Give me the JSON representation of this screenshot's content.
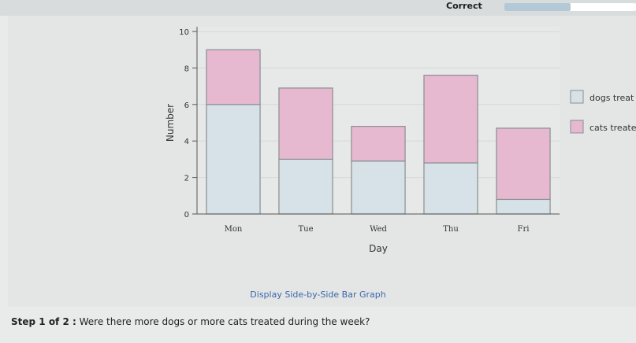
{
  "header": {
    "status": "Correct",
    "progress": 0.5
  },
  "chart_data": {
    "type": "bar",
    "stacked": true,
    "categories": [
      "Mon",
      "Tue",
      "Wed",
      "Thu",
      "Fri"
    ],
    "series": [
      {
        "name": "dogs treat",
        "values": [
          6,
          3,
          2.9,
          2.8,
          0.8
        ],
        "color": "#d6e2e7"
      },
      {
        "name": "cats treate",
        "values": [
          3,
          3.9,
          1.9,
          4.8,
          3.9
        ],
        "color": "#e6b9d1"
      }
    ],
    "xlabel": "Day",
    "ylabel": "Number",
    "ylim": [
      0,
      10
    ],
    "yticks": [
      "0",
      "2",
      "4",
      "6",
      "8",
      "10"
    ],
    "grid": true,
    "legend": "right"
  },
  "link": {
    "label": "Display Side-by-Side Bar Graph"
  },
  "step": {
    "label": "Step 1 of 2 :",
    "question": "Were there more dogs or more cats treated during the week?"
  }
}
